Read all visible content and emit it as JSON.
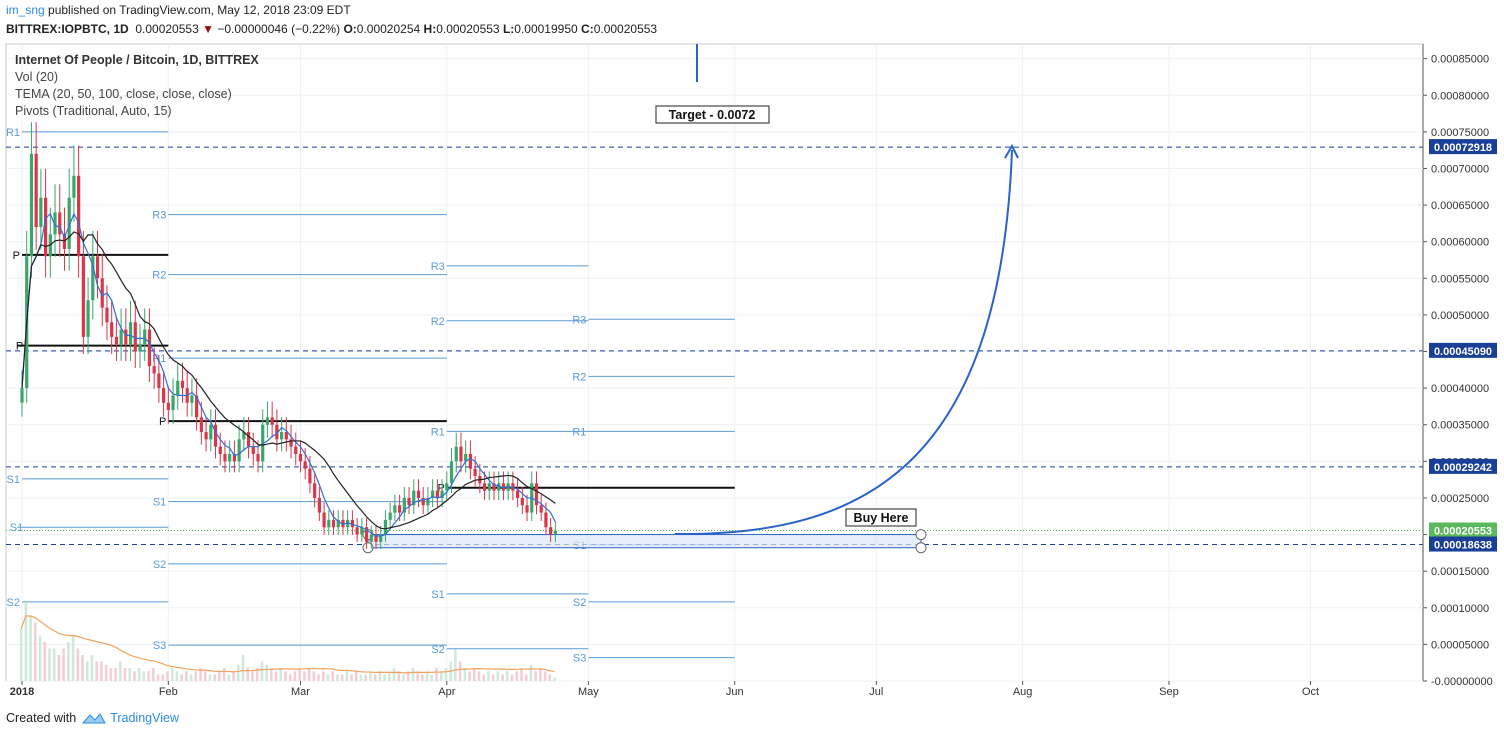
{
  "header": {
    "user": "im_sng",
    "published": "published on TradingView.com, May 12, 2018 23:09 EDT",
    "symbol": "BITTREX:IOPBTC, 1D",
    "last": "0.00020553",
    "down_arrow": "▼",
    "change": "−0.00000046 (−0.22%)",
    "o_label": "O:",
    "o": "0.00020254",
    "h_label": "H:",
    "h": "0.00020553",
    "l_label": "L:",
    "l": "0.00019950",
    "c_label": "C:",
    "c": "0.00020553"
  },
  "legend": {
    "title": "Internet Of People / Bitcoin, 1D, BITTREX",
    "vol": "Vol (20)",
    "tema": "TEMA (20, 50, 100, close, close, close)",
    "pivots": "Pivots (Traditional, Auto, 15)"
  },
  "footer": {
    "created": "Created with",
    "brand": "TradingView"
  },
  "colors": {
    "up": "#3aa66a",
    "down": "#d9364a",
    "accent": "#2962c9",
    "pivot": "#5b9bd5",
    "dashed": "#1a3f99",
    "price_tag": "#5cb85c"
  },
  "chart_data": {
    "type": "candlestick",
    "title": "Internet Of People / Bitcoin, 1D, BITTREX",
    "ylim": [
      0,
      0.00087
    ],
    "y_ticks": [
      "0.00085000",
      "0.00080000",
      "0.00075000",
      "0.00070000",
      "0.00065000",
      "0.00060000",
      "0.00055000",
      "0.00050000",
      "0.00045000",
      "0.00040000",
      "0.00035000",
      "0.00030000",
      "0.00025000",
      "0.00020000",
      "0.00015000",
      "0.00010000",
      "0.00005000",
      "-0.00000000"
    ],
    "x_ticks": [
      "2018",
      "Feb",
      "Mar",
      "Apr",
      "May",
      "Jun",
      "Jul",
      "Aug",
      "Sep",
      "Oct"
    ],
    "price_tags": [
      {
        "label": "0.00072918",
        "value": 0.00072918,
        "style": "dark"
      },
      {
        "label": "0.00045090",
        "value": 0.0004509,
        "style": "dark"
      },
      {
        "label": "0.00029242",
        "value": 0.00029242,
        "style": "dark"
      },
      {
        "label": "0.00020553",
        "value": 0.00020553,
        "style": "last"
      },
      {
        "label": "0.00018638",
        "value": 0.00018638,
        "style": "dark"
      }
    ],
    "annotations": {
      "target": "Target - 0.0072",
      "buy": "Buy Here"
    },
    "pivots": [
      {
        "label": "R1",
        "value": 0.00075,
        "start": "Jan 1",
        "end": "Jan 31"
      },
      {
        "label": "P",
        "value": 0.000582,
        "start": "Jan 1",
        "end": "Jan 31"
      },
      {
        "label": "P",
        "value": 0.000458,
        "start": "Dec 31",
        "end": "Jan 31"
      },
      {
        "label": "S1",
        "value": 0.000276,
        "start": "Jan 1",
        "end": "Jan 31"
      },
      {
        "label": "S1",
        "value": 0.00021,
        "start": "Dec 31",
        "end": "Jan 31"
      },
      {
        "label": "S2",
        "value": 0.000108,
        "start": "Jan 1",
        "end": "Jan 31"
      },
      {
        "label": "R3",
        "value": 0.000637,
        "start": "Feb 1",
        "end": "Mar 31"
      },
      {
        "label": "R2",
        "value": 0.000555,
        "start": "Feb 1",
        "end": "Mar 31"
      },
      {
        "label": "R1",
        "value": 0.000441,
        "start": "Feb 1",
        "end": "Mar 31"
      },
      {
        "label": "P",
        "value": 0.000355,
        "start": "Feb 1",
        "end": "Mar 31"
      },
      {
        "label": "S1",
        "value": 0.000245,
        "start": "Feb 1",
        "end": "Mar 31"
      },
      {
        "label": "S2",
        "value": 0.00016,
        "start": "Feb 1",
        "end": "Mar 31"
      },
      {
        "label": "S3",
        "value": 4.9e-05,
        "start": "Feb 1",
        "end": "Mar 31"
      },
      {
        "label": "R3",
        "value": 0.000567,
        "start": "Apr 1",
        "end": "Apr 30"
      },
      {
        "label": "R2",
        "value": 0.000492,
        "start": "Apr 1",
        "end": "Apr 30"
      },
      {
        "label": "R1",
        "value": 0.000341,
        "start": "Apr 1",
        "end": "Apr 30"
      },
      {
        "label": "P",
        "value": 0.000264,
        "start": "Apr 1",
        "end": "May 31"
      },
      {
        "label": "S1",
        "value": 0.000119,
        "start": "Apr 1",
        "end": "Apr 30"
      },
      {
        "label": "S2",
        "value": 4.4e-05,
        "start": "Apr 1",
        "end": "Apr 30"
      },
      {
        "label": "R3",
        "value": 0.000494,
        "start": "May 1",
        "end": "May 31"
      },
      {
        "label": "R2",
        "value": 0.000416,
        "start": "May 1",
        "end": "May 31"
      },
      {
        "label": "R1",
        "value": 0.000341,
        "start": "May 1",
        "end": "May 31"
      },
      {
        "label": "S1",
        "value": 0.000186,
        "start": "May 1",
        "end": "May 31"
      },
      {
        "label": "S2",
        "value": 0.000108,
        "start": "May 1",
        "end": "May 31"
      },
      {
        "label": "S3",
        "value": 3.2e-05,
        "start": "May 1",
        "end": "May 31"
      }
    ],
    "closes": [
      0.0004,
      0.00058,
      0.00072,
      0.00062,
      0.00066,
      0.00058,
      0.00061,
      0.00064,
      0.00061,
      0.00059,
      0.00066,
      0.00069,
      0.00058,
      0.00047,
      0.00052,
      0.00058,
      0.00055,
      0.00051,
      0.00049,
      0.00047,
      0.00046,
      0.00048,
      0.00046,
      0.00049,
      0.00045,
      0.00046,
      0.00048,
      0.00043,
      0.00042,
      0.0004,
      0.00038,
      0.00037,
      0.00039,
      0.00041,
      0.0004,
      0.00038,
      0.00039,
      0.00036,
      0.00034,
      0.00033,
      0.00035,
      0.00032,
      0.00031,
      0.0003,
      0.00031,
      0.0003,
      0.00033,
      0.00034,
      0.00032,
      0.00031,
      0.0003,
      0.00035,
      0.00036,
      0.00035,
      0.00033,
      0.00034,
      0.00033,
      0.00032,
      0.00031,
      0.0003,
      0.00029,
      0.00027,
      0.00025,
      0.00023,
      0.00021,
      0.00022,
      0.00021,
      0.00022,
      0.00021,
      0.00022,
      0.00021,
      0.0002,
      0.00021,
      0.00019,
      0.0002,
      0.00019,
      0.0002,
      0.00022,
      0.00023,
      0.00024,
      0.00023,
      0.00025,
      0.00024,
      0.00026,
      0.00025,
      0.00024,
      0.00025,
      0.00026,
      0.00025,
      0.00026,
      0.00027,
      0.0003,
      0.00032,
      0.0003,
      0.00031,
      0.00029,
      0.00028,
      0.00027,
      0.00026,
      0.00027,
      0.00026,
      0.00027,
      0.00026,
      0.00027,
      0.00026,
      0.00025,
      0.00024,
      0.00023,
      0.00027,
      0.00024,
      0.00023,
      0.00021,
      0.0002,
      0.00020553
    ],
    "volumes": [
      0.08,
      0.12,
      0.1,
      0.09,
      0.07,
      0.06,
      0.05,
      0.05,
      0.04,
      0.05,
      0.06,
      0.07,
      0.05,
      0.04,
      0.03,
      0.04,
      0.03,
      0.03,
      0.025,
      0.02,
      0.02,
      0.03,
      0.02,
      0.02,
      0.015,
      0.02,
      0.015,
      0.015,
      0.02,
      0.01,
      0.01,
      0.015,
      0.02,
      0.015,
      0.01,
      0.015,
      0.01,
      0.015,
      0.02,
      0.015,
      0.01,
      0.01,
      0.015,
      0.02,
      0.01,
      0.015,
      0.025,
      0.04,
      0.02,
      0.015,
      0.02,
      0.03,
      0.025,
      0.02,
      0.015,
      0.02,
      0.015,
      0.01,
      0.015,
      0.02,
      0.015,
      0.02,
      0.015,
      0.01,
      0.015,
      0.01,
      0.015,
      0.01,
      0.01,
      0.015,
      0.01,
      0.015,
      0.01,
      0.01,
      0.015,
      0.01,
      0.015,
      0.01,
      0.015,
      0.02,
      0.015,
      0.01,
      0.015,
      0.02,
      0.015,
      0.01,
      0.015,
      0.01,
      0.02,
      0.015,
      0.02,
      0.03,
      0.05,
      0.03,
      0.02,
      0.015,
      0.02,
      0.015,
      0.01,
      0.015,
      0.01,
      0.015,
      0.01,
      0.015,
      0.01,
      0.015,
      0.02,
      0.01,
      0.025,
      0.015,
      0.02,
      0.015,
      0.01,
      0.005
    ]
  }
}
